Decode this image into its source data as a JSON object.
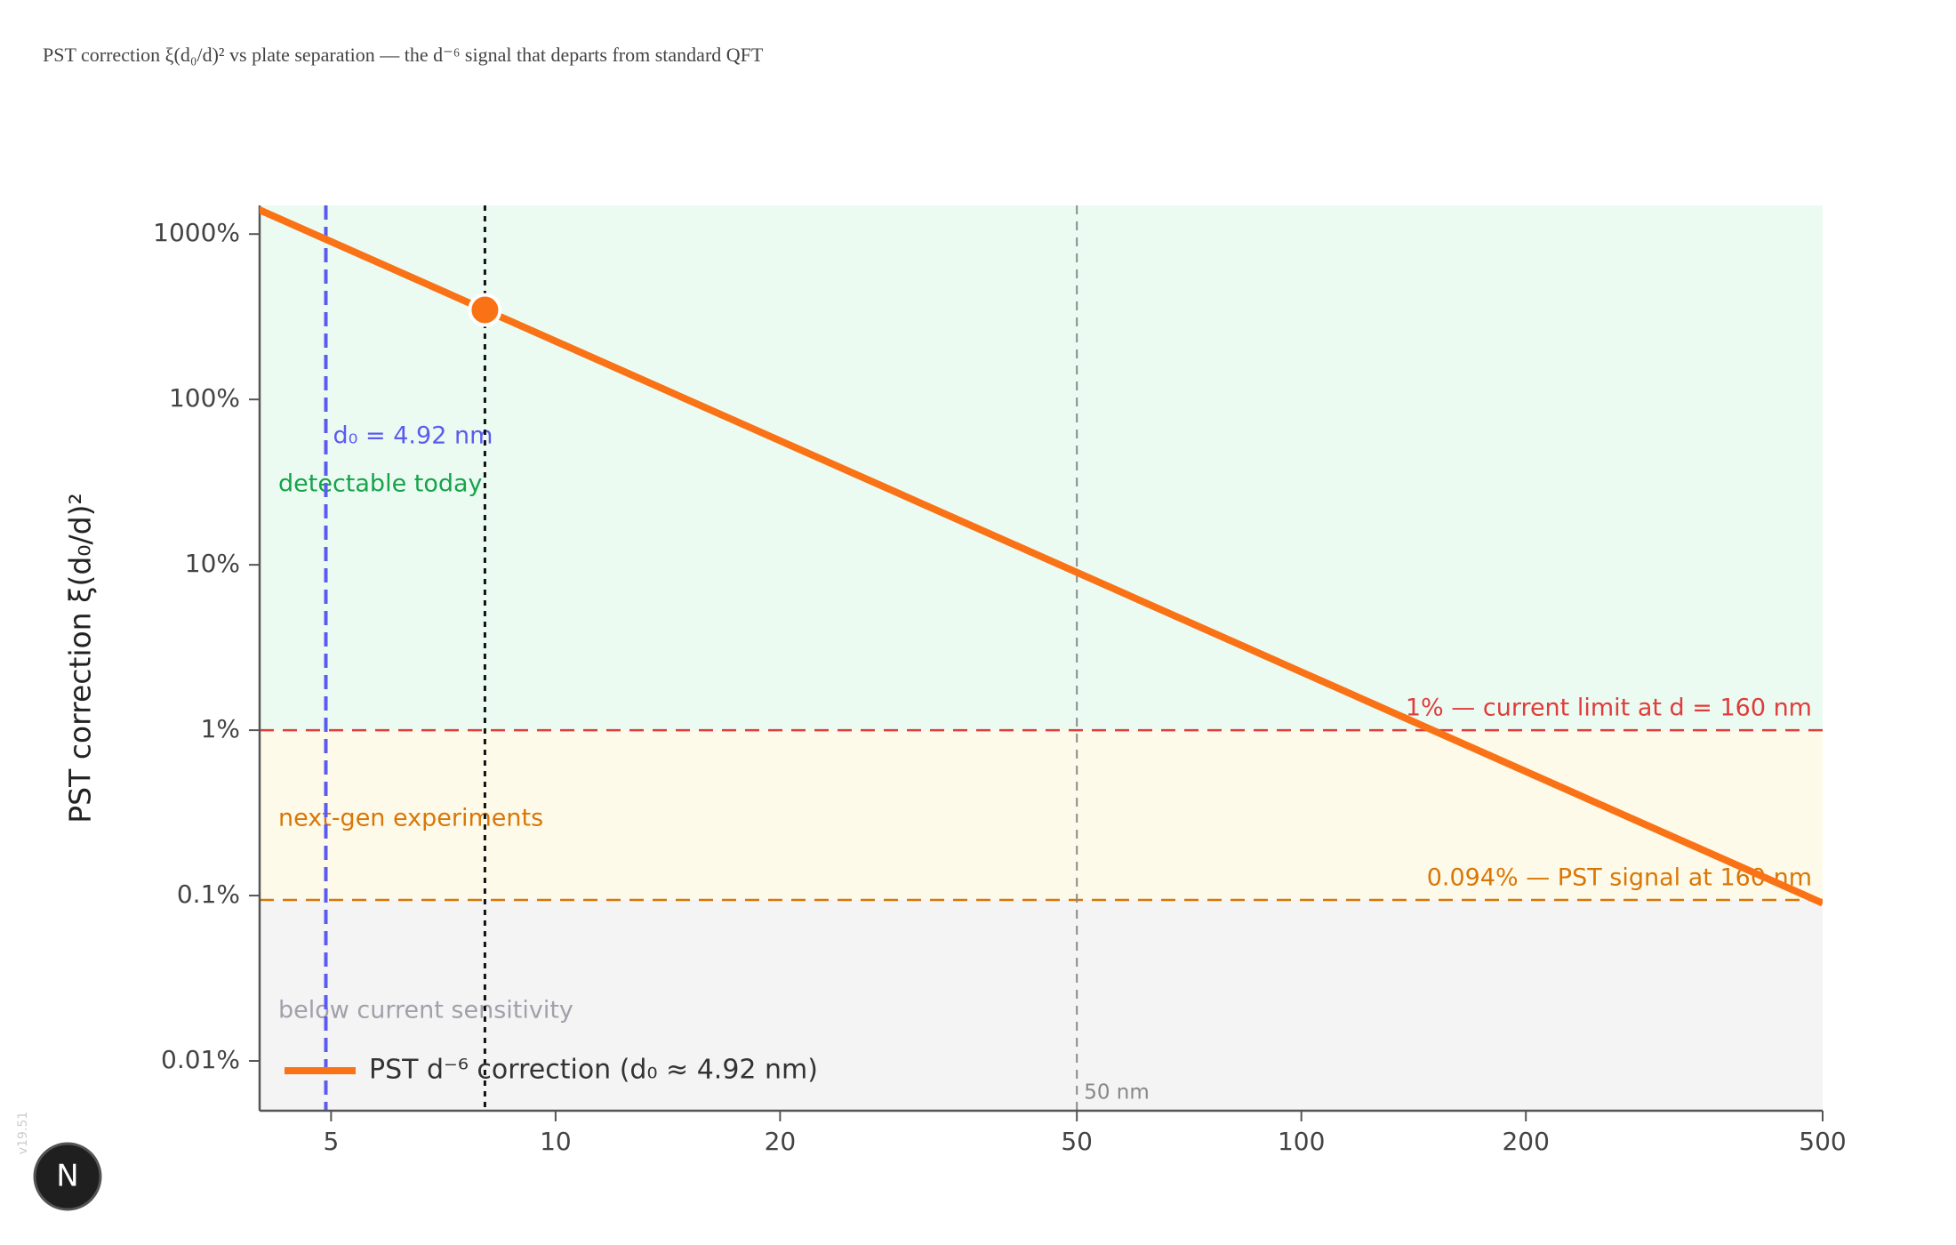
{
  "chart_data": {
    "type": "line",
    "title": "PST correction ξ(d₀/d)² vs plate separation — the d⁻⁶ signal that departs from standard QFT",
    "y_label": "PST correction ξ(d₀/d)²",
    "x": [
      4,
      5,
      10,
      20,
      50,
      100,
      200,
      500
    ],
    "series": [
      {
        "name": "PST d⁻⁶ correction (d₀ ≈ 4.92 nm)",
        "color": "#f97316",
        "values": [
          1406.25,
          900,
          225,
          56.25,
          9,
          2.25,
          0.5625,
          0.09
        ]
      }
    ],
    "highlight": {
      "x": 8.04,
      "y": 348
    },
    "xlim": [
      4.01,
      500
    ],
    "ylim": [
      0.005,
      1490
    ],
    "xticks": [
      5,
      10,
      20,
      50,
      100,
      200,
      500
    ],
    "yticks": [
      {
        "value": 0.01,
        "label": "0.01%"
      },
      {
        "value": 0.1,
        "label": "0.1%"
      },
      {
        "value": 1,
        "label": "1%"
      },
      {
        "value": 10,
        "label": "10%"
      },
      {
        "value": 100,
        "label": "100%"
      },
      {
        "value": 1000,
        "label": "1000%"
      }
    ],
    "log_x": true,
    "log_y": true,
    "regions": [
      {
        "label": "detectable today",
        "ymin": 1,
        "color": "#ecfbf2",
        "text_color": "#16a34a"
      },
      {
        "label": "next-gen experiments",
        "ymin": 0.094,
        "color": "#fefaea",
        "text_color": "#d97706"
      },
      {
        "label": "below current sensitivity",
        "color": "#f4f4f5",
        "text_color": "#a1a1aa"
      }
    ],
    "hlines": [
      {
        "value": 1,
        "label": "1% — current limit at d = 160 nm",
        "color": "#e03c3c"
      },
      {
        "value": 0.094,
        "label": "0.094% — PST signal at 160 nm",
        "color": "#d97706"
      }
    ],
    "vlines": [
      {
        "value": 4.92,
        "label": "d₀ = 4.92 nm",
        "color": "#5b5bf0"
      },
      {
        "value": 8.04,
        "color": "#111111"
      },
      {
        "value": 50,
        "label": "50 nm",
        "color": "#8a8a8a"
      }
    ],
    "legend": "lower left"
  },
  "dev_badge": {
    "version": "v19.51",
    "icon": "N"
  }
}
